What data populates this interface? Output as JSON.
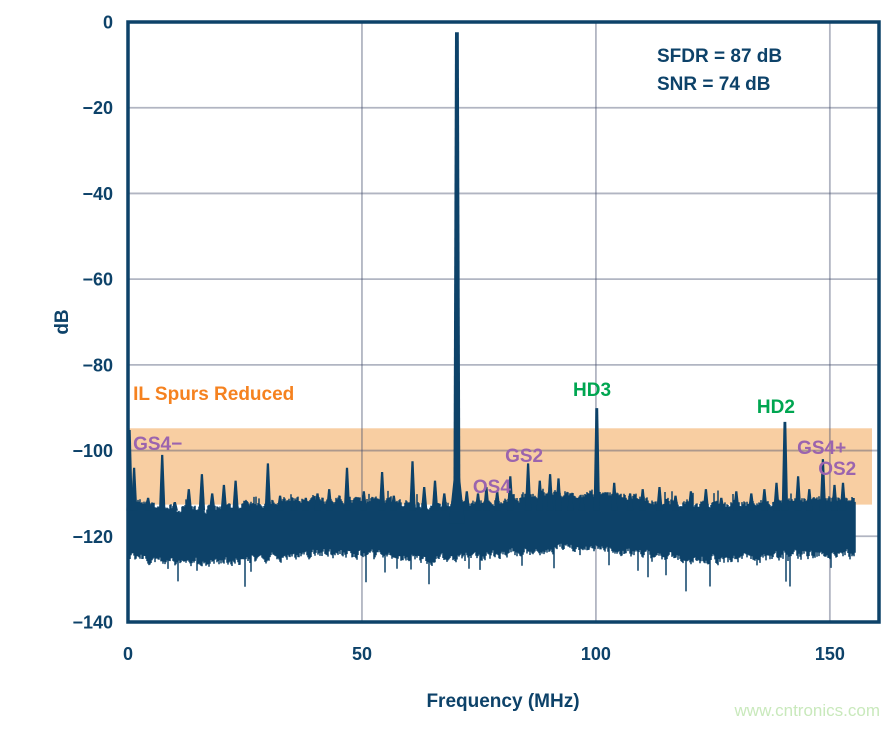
{
  "page": {
    "background": "#ffffff",
    "watermark": "www.cntronics.com"
  },
  "colors": {
    "trace": "#0d4269",
    "text": "#0d4269",
    "grid": "rgba(70,78,110,0.42)",
    "band": "#f8cea2",
    "orange": "#f58220",
    "purple": "#9b64ae",
    "green": "#00a651",
    "watermark": "#c9e9bc"
  },
  "chart_data": {
    "type": "line",
    "title": "",
    "xlabel": "Frequency (MHz)",
    "ylabel": "dB",
    "x_range": [
      0,
      160.5
    ],
    "y_range": [
      -140,
      0
    ],
    "grid": true,
    "legend": false,
    "x_ticks": [
      {
        "value": 0,
        "label": "0"
      },
      {
        "value": 50,
        "label": "50"
      },
      {
        "value": 100,
        "label": "100"
      },
      {
        "value": 150,
        "label": "150"
      }
    ],
    "y_ticks": [
      {
        "value": 0,
        "label": "0"
      },
      {
        "value": -20,
        "label": "−20"
      },
      {
        "value": -40,
        "label": "−40"
      },
      {
        "value": -60,
        "label": "−60"
      },
      {
        "value": -80,
        "label": "−80"
      },
      {
        "value": -100,
        "label": "−100"
      },
      {
        "value": -120,
        "label": "−120"
      },
      {
        "value": -140,
        "label": "−140"
      }
    ],
    "annotations": {
      "sfdr": "SFDR = 87 dB",
      "snr": "SNR = 74 dB"
    },
    "sfdr_db": 87,
    "snr_db": 74,
    "highlight_band": {
      "label": "IL Spurs Reduced",
      "top_db": -94.8,
      "bottom_db": -112.6,
      "x_start_mhz": 0,
      "x_end_mhz": 159
    },
    "fundamental": {
      "freq_mhz": 70.3,
      "db": -2.4
    },
    "harmonics": [
      {
        "name": "HD3",
        "freq_mhz": 100.2,
        "db": -90.1
      },
      {
        "name": "HD2",
        "freq_mhz": 140.4,
        "db": -93.3
      }
    ],
    "noise_floor": {
      "mean_db": -118,
      "top_db": -113.5,
      "bottom_db": -122.5,
      "start_mhz": 0.2,
      "end_mhz": 155.4
    },
    "spurs": [
      [
        0.35,
        -95.2
      ],
      [
        1.3,
        -104
      ],
      [
        4.3,
        -111
      ],
      [
        7.3,
        -101
      ],
      [
        10,
        -112
      ],
      [
        13,
        -109
      ],
      [
        15.8,
        -105.5
      ],
      [
        18,
        -110
      ],
      [
        20.5,
        -108
      ],
      [
        23,
        -107
      ],
      [
        25.5,
        -112
      ],
      [
        29.9,
        -103
      ],
      [
        32.5,
        -110.5
      ],
      [
        35.5,
        -112
      ],
      [
        38,
        -111
      ],
      [
        40.5,
        -110
      ],
      [
        43,
        -109
      ],
      [
        46.8,
        -104
      ],
      [
        50.4,
        -109.5
      ],
      [
        54.3,
        -105
      ],
      [
        56.8,
        -110.5
      ],
      [
        60.8,
        -102.5
      ],
      [
        63.3,
        -108.5
      ],
      [
        65.6,
        -107
      ],
      [
        67.6,
        -110
      ],
      [
        72.4,
        -109.5
      ],
      [
        74.8,
        -110
      ],
      [
        76.6,
        -108.5
      ],
      [
        78.9,
        -109.5
      ],
      [
        81.7,
        -106
      ],
      [
        85.5,
        -103
      ],
      [
        88,
        -107
      ],
      [
        90.2,
        -105.5
      ],
      [
        92,
        -106.5
      ],
      [
        94.6,
        -110
      ],
      [
        97,
        -111
      ],
      [
        103.9,
        -107.5
      ],
      [
        107.3,
        -110
      ],
      [
        110,
        -109
      ],
      [
        113.6,
        -108.5
      ],
      [
        117,
        -110.5
      ],
      [
        120.3,
        -109.5
      ],
      [
        123.5,
        -109
      ],
      [
        126.8,
        -111
      ],
      [
        130,
        -109.5
      ],
      [
        133.2,
        -110
      ],
      [
        136,
        -109
      ],
      [
        138.6,
        -107.5
      ],
      [
        143.2,
        -106
      ],
      [
        145.6,
        -109
      ],
      [
        148.5,
        -102
      ],
      [
        151,
        -108
      ],
      [
        152.8,
        -107.5
      ]
    ],
    "labels": [
      {
        "text": "IL Spurs Reduced",
        "x_mhz": 1.1,
        "y_db": -88.2,
        "color_key": "orange"
      },
      {
        "text": "GS4−",
        "x_mhz": 1.1,
        "y_db": -99.9,
        "color_key": "purple"
      },
      {
        "text": "OS4",
        "x_mhz": 73.7,
        "y_db": -109.9,
        "color_key": "purple"
      },
      {
        "text": "GS2",
        "x_mhz": 80.6,
        "y_db": -102.7,
        "color_key": "purple"
      },
      {
        "text": "HD3",
        "x_mhz": 95.1,
        "y_db": -87.3,
        "color_key": "green"
      },
      {
        "text": "HD2",
        "x_mhz": 134.4,
        "y_db": -91.2,
        "color_key": "green"
      },
      {
        "text": "GS4+",
        "x_mhz": 143.0,
        "y_db": -100.8,
        "color_key": "purple"
      },
      {
        "text": "OS2",
        "x_mhz": 147.5,
        "y_db": -105.7,
        "color_key": "purple"
      }
    ]
  }
}
